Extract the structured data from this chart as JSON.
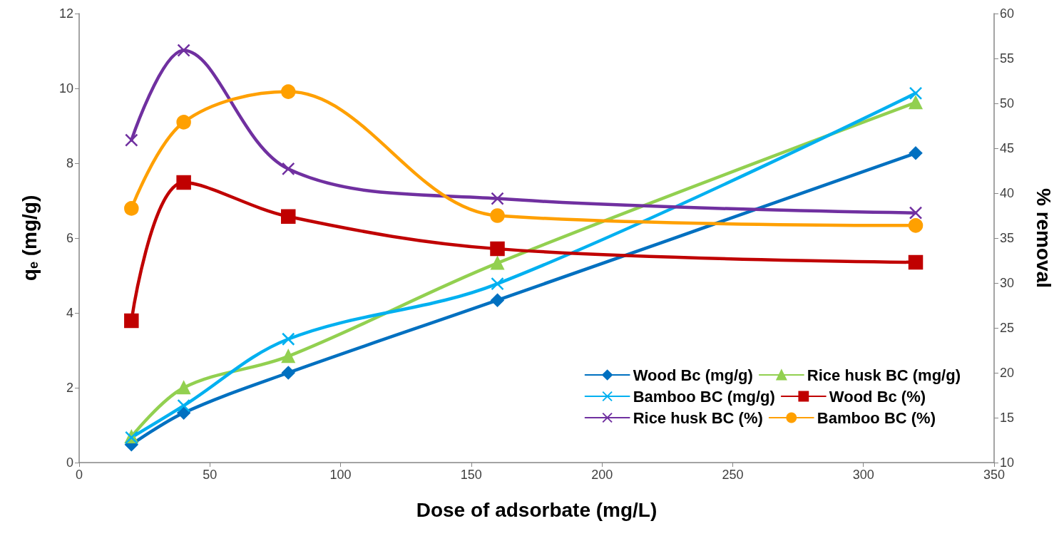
{
  "chart_data": {
    "type": "line",
    "xlabel": "Dose of adsorbate (mg/L)",
    "ylabel": "q$_{e}$ (mg/g)",
    "y2label": "% removal",
    "x": [
      20,
      40,
      80,
      160,
      320
    ],
    "xlim": [
      0,
      350
    ],
    "xticks": [
      0,
      50,
      100,
      150,
      200,
      250,
      300,
      350
    ],
    "ylim": [
      0,
      12
    ],
    "yticks": [
      0,
      2,
      4,
      6,
      8,
      10,
      12
    ],
    "y2lim": [
      10,
      60
    ],
    "y2ticks": [
      10,
      15,
      20,
      25,
      30,
      35,
      40,
      45,
      50,
      55,
      60
    ],
    "grid": false,
    "legend": "bottom right",
    "series": [
      {
        "name": "Wood Bc (mg/g)",
        "color": "#0070c0",
        "marker": "diamond",
        "values": [
          0.48,
          1.33,
          2.4,
          4.34,
          8.27
        ]
      },
      {
        "name": "Rice husk BC (mg/g)",
        "color": "#92d050",
        "marker": "triangle",
        "values": [
          0.69,
          2.0,
          2.84,
          5.33,
          9.62
        ]
      },
      {
        "name": "Bamboo BC (mg/g)",
        "color": "#00b0f0",
        "marker": "cross",
        "values": [
          0.67,
          1.52,
          3.3,
          4.78,
          9.87
        ]
      },
      {
        "name": "Wood Bc (%)",
        "color": "#c00000",
        "marker": "square",
        "axis": "y2",
        "values": [
          25.8,
          41.2,
          37.4,
          33.8,
          32.3
        ]
      },
      {
        "name": "Rice husk BC (%)",
        "color": "#7030a0",
        "marker": "cross",
        "axis": "y2",
        "values": [
          45.9,
          55.9,
          42.7,
          39.4,
          37.8
        ]
      },
      {
        "name": "Bamboo BC (%)",
        "color": "#ffa000",
        "marker": "circle",
        "axis": "y2",
        "values": [
          38.3,
          47.9,
          51.3,
          37.5,
          36.4
        ]
      }
    ]
  }
}
